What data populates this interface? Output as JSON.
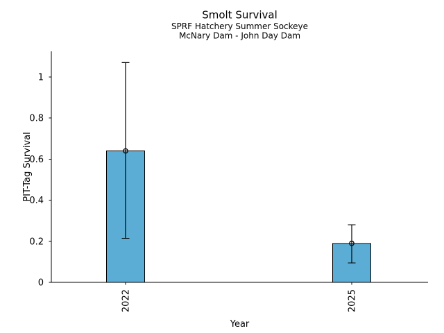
{
  "chart_data": {
    "type": "bar",
    "title": "Smolt Survival",
    "subtitle": [
      "SPRF Hatchery Summer Sockeye",
      "McNary Dam - John Day Dam"
    ],
    "xlabel": "Year",
    "ylabel": "PIT-Tag Survival",
    "categories": [
      "2022",
      "2025"
    ],
    "values": [
      0.64,
      0.19
    ],
    "error_low": [
      0.215,
      0.095
    ],
    "error_high": [
      1.07,
      0.28
    ],
    "ylim": [
      0,
      1.125
    ],
    "yticks": [
      0,
      0.2,
      0.4,
      0.6,
      0.8,
      1
    ],
    "ytick_labels": [
      "0",
      "0.2",
      "0.4",
      "0.6",
      "0.8",
      "1"
    ],
    "grid": false,
    "legend": "none",
    "marker": "open-circle",
    "colors": {
      "bar_fill": "#5BADD6",
      "bar_edge": "#000000",
      "error_bar": "#000000",
      "axis": "#000000",
      "text": "#000000",
      "background": "#FFFFFF"
    }
  }
}
